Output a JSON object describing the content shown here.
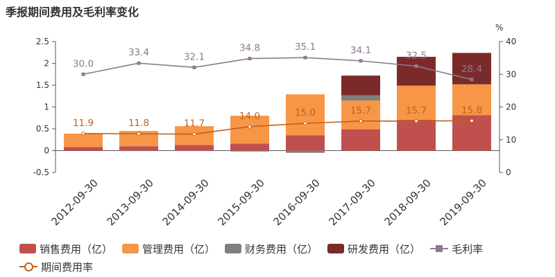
{
  "title": "季报期间费用及毛利率变化",
  "chart_data": {
    "type": "bar",
    "stacked": true,
    "categories": [
      "2012-09-30",
      "2013-09-30",
      "2014-09-30",
      "2015-09-30",
      "2016-09-30",
      "2017-09-30",
      "2018-09-30",
      "2019-09-30"
    ],
    "series": [
      {
        "name": "销售费用（亿）",
        "type": "bar",
        "axis": "left",
        "color": "#c0504d",
        "values": [
          0.08,
          0.1,
          0.13,
          0.16,
          0.35,
          0.49,
          0.71,
          0.81
        ]
      },
      {
        "name": "管理费用（亿）",
        "type": "bar",
        "axis": "left",
        "color": "#f79646",
        "values": [
          0.31,
          0.35,
          0.43,
          0.64,
          0.94,
          0.66,
          0.78,
          0.71
        ]
      },
      {
        "name": "财务费用（亿）",
        "type": "bar",
        "axis": "left",
        "color": "#7f7f7f",
        "values": [
          0.0,
          -0.01,
          -0.01,
          -0.02,
          -0.05,
          0.12,
          0.0,
          0.0
        ]
      },
      {
        "name": "研发费用（亿）",
        "type": "bar",
        "axis": "left",
        "color": "#7b2a2a",
        "values": [
          0.0,
          0.0,
          0.0,
          0.0,
          0.0,
          0.45,
          0.66,
          0.72
        ]
      },
      {
        "name": "毛利率",
        "type": "line",
        "axis": "right",
        "color": "#8c7a8e",
        "marker": "square",
        "values": [
          30.0,
          33.4,
          32.1,
          34.8,
          35.1,
          34.1,
          32.5,
          28.4
        ]
      },
      {
        "name": "期间费用率",
        "type": "line",
        "axis": "right",
        "color": "#c0611b",
        "marker": "circle",
        "values": [
          11.9,
          11.8,
          11.7,
          14.0,
          15.0,
          15.7,
          15.7,
          15.8
        ]
      }
    ],
    "y_left": {
      "ylim": [
        -0.5,
        2.5
      ],
      "ticks": [
        "-0.5",
        "0",
        "0.5",
        "1",
        "1.5",
        "2",
        "2.5"
      ]
    },
    "y_right": {
      "label": "%",
      "ylim": [
        0,
        40
      ],
      "ticks": [
        "0",
        "10",
        "20",
        "30",
        "40"
      ]
    },
    "grid": false,
    "legend": "bottom"
  }
}
